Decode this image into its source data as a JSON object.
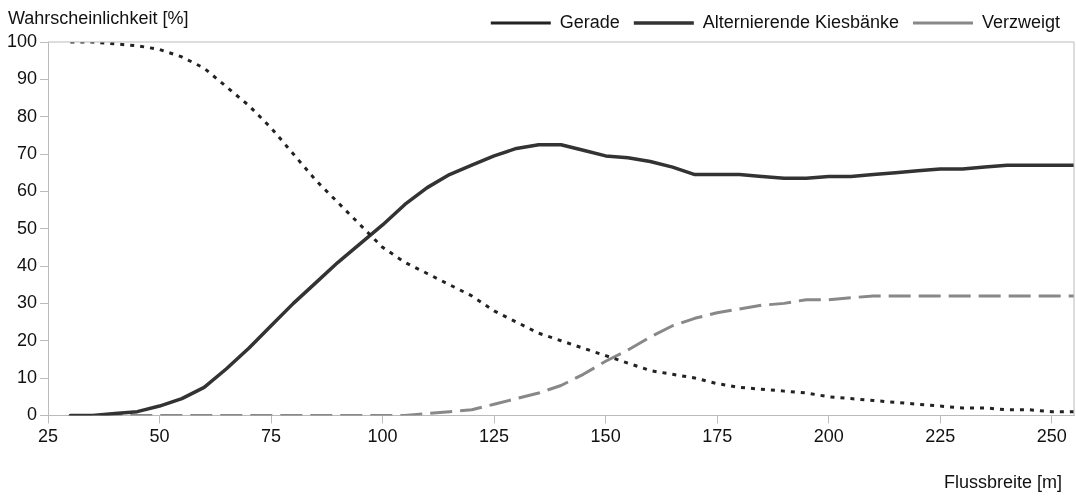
{
  "chart_data": {
    "type": "line",
    "ylabel": "Wahrscheinlichkeit [%]",
    "xlabel": "Flussbreite [m]",
    "x": [
      30,
      35,
      40,
      45,
      50,
      55,
      60,
      65,
      70,
      75,
      80,
      85,
      90,
      95,
      100,
      105,
      110,
      115,
      120,
      125,
      130,
      135,
      140,
      145,
      150,
      155,
      160,
      165,
      170,
      175,
      180,
      185,
      190,
      195,
      200,
      205,
      210,
      215,
      220,
      225,
      230,
      235,
      240,
      245,
      250,
      255
    ],
    "xlim": [
      25,
      255
    ],
    "xticks": [
      25,
      50,
      75,
      100,
      125,
      150,
      175,
      200,
      225,
      250
    ],
    "ylim": [
      0,
      100
    ],
    "yticks": [
      0,
      10,
      20,
      30,
      40,
      50,
      60,
      70,
      80,
      90,
      100
    ],
    "grid": false,
    "legend": "top right",
    "marker": "none",
    "series": [
      {
        "name": "Gerade",
        "color": "#222222",
        "line_style": "dotted",
        "values": [
          100,
          100,
          99.5,
          99,
          98,
          96,
          93,
          88,
          83,
          77,
          70,
          63,
          57,
          51,
          45,
          41,
          38,
          35,
          32,
          28,
          25,
          22,
          20,
          18,
          16,
          14,
          12,
          11,
          10,
          8.5,
          7.5,
          7,
          6.5,
          6,
          5,
          4.5,
          4,
          3.5,
          3,
          2.5,
          2,
          2,
          1.5,
          1.5,
          1,
          1
        ]
      },
      {
        "name": "Alternierende Kiesbänke",
        "color": "#333333",
        "line_style": "solid",
        "values": [
          0,
          0,
          0.5,
          1,
          2.5,
          4.5,
          7.5,
          12.5,
          18,
          24,
          30,
          35.5,
          41,
          46,
          51,
          56.5,
          61,
          64.5,
          67,
          69.5,
          71.5,
          72.5,
          72.5,
          71,
          69.5,
          69,
          68,
          66.5,
          64.5,
          64.5,
          64.5,
          64,
          63.5,
          63.5,
          64,
          64,
          64.5,
          65,
          65.5,
          66,
          66,
          66.5,
          67,
          67,
          67,
          67
        ]
      },
      {
        "name": "Verzweigt",
        "color": "#888888",
        "line_style": "dashed",
        "values": [
          0,
          0,
          0,
          0,
          0,
          0,
          0,
          0,
          0,
          0,
          0,
          0,
          0,
          0,
          0,
          0,
          0.5,
          1,
          1.5,
          3,
          4.5,
          6,
          8,
          11,
          14.5,
          17.5,
          21,
          24,
          26,
          27.5,
          28.5,
          29.5,
          30,
          31,
          31,
          31.5,
          32,
          32,
          32,
          32,
          32,
          32,
          32,
          32,
          32,
          32
        ]
      }
    ]
  }
}
